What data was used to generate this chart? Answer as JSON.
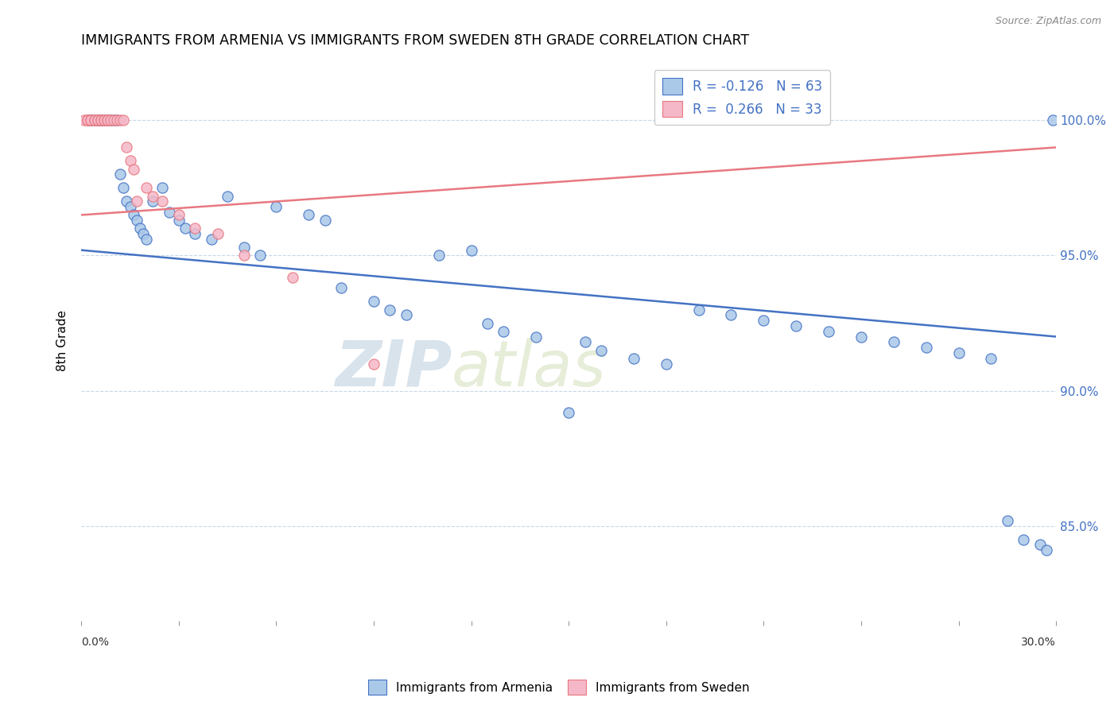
{
  "title": "IMMIGRANTS FROM ARMENIA VS IMMIGRANTS FROM SWEDEN 8TH GRADE CORRELATION CHART",
  "source": "Source: ZipAtlas.com",
  "ylabel": "8th Grade",
  "x_range": [
    0.0,
    0.3
  ],
  "y_range": [
    0.815,
    1.022
  ],
  "y_ticks": [
    0.85,
    0.9,
    0.95,
    1.0
  ],
  "y_tick_labels": [
    "85.0%",
    "90.0%",
    "95.0%",
    "100.0%"
  ],
  "legend_r_armenia": "-0.126",
  "legend_n_armenia": "63",
  "legend_r_sweden": "0.266",
  "legend_n_sweden": "33",
  "color_armenia": "#aac8e8",
  "color_sweden": "#f5b8c8",
  "line_color_armenia": "#4472c4",
  "line_color_sweden": "#e87880",
  "watermark_color": "#d0dff0",
  "armenia_x": [
    0.002,
    0.003,
    0.003,
    0.004,
    0.005,
    0.006,
    0.006,
    0.007,
    0.008,
    0.009,
    0.01,
    0.011,
    0.012,
    0.013,
    0.014,
    0.015,
    0.016,
    0.017,
    0.018,
    0.019,
    0.02,
    0.022,
    0.025,
    0.027,
    0.03,
    0.032,
    0.035,
    0.04,
    0.045,
    0.05,
    0.055,
    0.06,
    0.07,
    0.075,
    0.08,
    0.09,
    0.095,
    0.1,
    0.11,
    0.12,
    0.125,
    0.13,
    0.14,
    0.15,
    0.155,
    0.16,
    0.17,
    0.18,
    0.19,
    0.2,
    0.21,
    0.22,
    0.23,
    0.24,
    0.25,
    0.26,
    0.27,
    0.28,
    0.285,
    0.29,
    0.295,
    0.297,
    0.299
  ],
  "armenia_y": [
    1.0,
    1.0,
    1.0,
    1.0,
    1.0,
    1.0,
    1.0,
    1.0,
    1.0,
    1.0,
    1.0,
    1.0,
    0.98,
    0.975,
    0.97,
    0.968,
    0.965,
    0.963,
    0.96,
    0.958,
    0.956,
    0.97,
    0.975,
    0.966,
    0.963,
    0.96,
    0.958,
    0.956,
    0.972,
    0.953,
    0.95,
    0.968,
    0.965,
    0.963,
    0.938,
    0.933,
    0.93,
    0.928,
    0.95,
    0.952,
    0.925,
    0.922,
    0.92,
    0.892,
    0.918,
    0.915,
    0.912,
    0.91,
    0.93,
    0.928,
    0.926,
    0.924,
    0.922,
    0.92,
    0.918,
    0.916,
    0.914,
    0.912,
    0.852,
    0.845,
    0.843,
    0.841,
    1.0
  ],
  "sweden_x": [
    0.001,
    0.002,
    0.002,
    0.003,
    0.003,
    0.004,
    0.004,
    0.005,
    0.005,
    0.006,
    0.006,
    0.007,
    0.007,
    0.008,
    0.008,
    0.009,
    0.01,
    0.011,
    0.012,
    0.013,
    0.014,
    0.015,
    0.016,
    0.017,
    0.02,
    0.022,
    0.025,
    0.03,
    0.035,
    0.042,
    0.05,
    0.065,
    0.09
  ],
  "sweden_y": [
    1.0,
    1.0,
    1.0,
    1.0,
    1.0,
    1.0,
    1.0,
    1.0,
    1.0,
    1.0,
    1.0,
    1.0,
    1.0,
    1.0,
    1.0,
    1.0,
    1.0,
    1.0,
    1.0,
    1.0,
    0.99,
    0.985,
    0.982,
    0.97,
    0.975,
    0.972,
    0.97,
    0.965,
    0.96,
    0.958,
    0.95,
    0.942,
    0.91
  ],
  "armenia_line_x": [
    0.0,
    0.3
  ],
  "armenia_line_y": [
    0.952,
    0.92
  ],
  "sweden_line_x": [
    0.0,
    0.3
  ],
  "sweden_line_y": [
    0.965,
    0.99
  ]
}
